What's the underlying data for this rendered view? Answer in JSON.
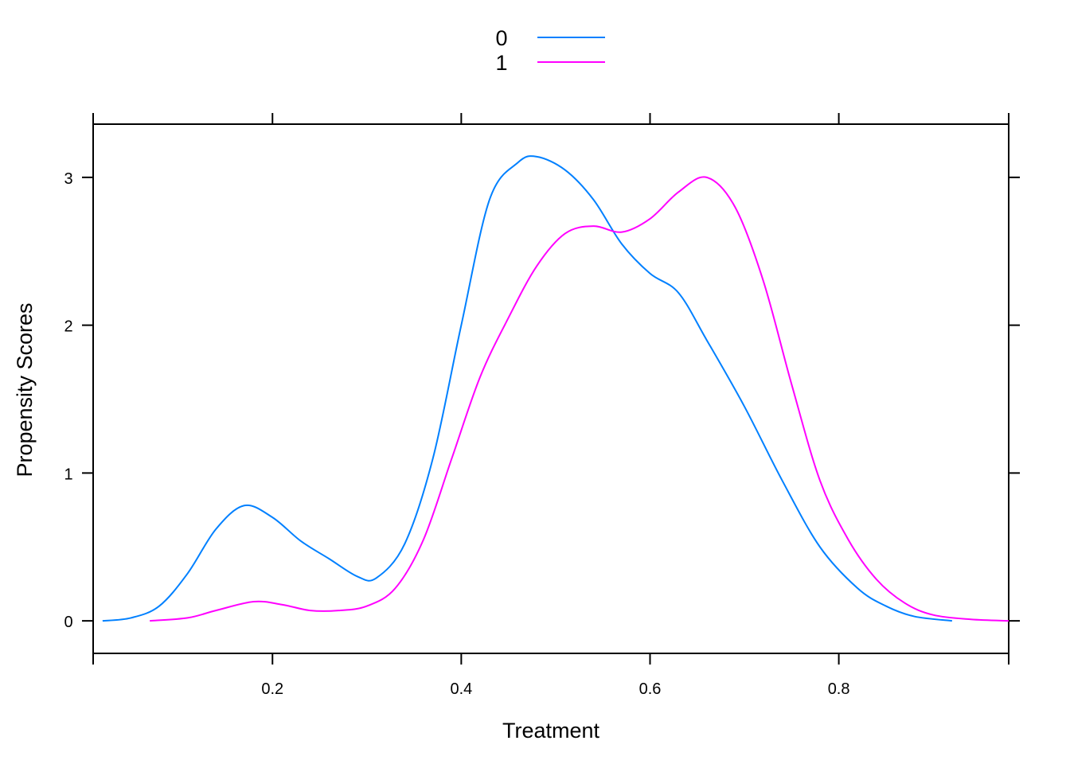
{
  "chart_data": {
    "type": "line",
    "title": "",
    "xlabel": "Treatment",
    "ylabel": "Propensity Scores",
    "xlim": [
      0.01,
      0.98
    ],
    "ylim": [
      -0.22,
      3.36
    ],
    "x_ticks": [
      0.2,
      0.4,
      0.6,
      0.8
    ],
    "x_tick_labels": [
      "0.2",
      "0.4",
      "0.6",
      "0.8"
    ],
    "y_ticks": [
      0,
      1,
      2,
      3
    ],
    "y_tick_labels": [
      "0",
      "1",
      "2",
      "3"
    ],
    "grid": false,
    "legend_position": "top",
    "series": [
      {
        "name": "0",
        "color": "#0080FF",
        "points": [
          [
            0.02,
            0.0
          ],
          [
            0.05,
            0.02
          ],
          [
            0.08,
            0.1
          ],
          [
            0.11,
            0.32
          ],
          [
            0.14,
            0.62
          ],
          [
            0.17,
            0.78
          ],
          [
            0.2,
            0.7
          ],
          [
            0.23,
            0.54
          ],
          [
            0.26,
            0.42
          ],
          [
            0.29,
            0.3
          ],
          [
            0.31,
            0.29
          ],
          [
            0.34,
            0.52
          ],
          [
            0.37,
            1.1
          ],
          [
            0.4,
            2.0
          ],
          [
            0.43,
            2.85
          ],
          [
            0.46,
            3.1
          ],
          [
            0.48,
            3.14
          ],
          [
            0.51,
            3.05
          ],
          [
            0.54,
            2.85
          ],
          [
            0.57,
            2.55
          ],
          [
            0.6,
            2.35
          ],
          [
            0.63,
            2.22
          ],
          [
            0.66,
            1.9
          ],
          [
            0.7,
            1.45
          ],
          [
            0.74,
            0.95
          ],
          [
            0.78,
            0.5
          ],
          [
            0.82,
            0.22
          ],
          [
            0.85,
            0.1
          ],
          [
            0.88,
            0.03
          ],
          [
            0.92,
            0.0
          ]
        ]
      },
      {
        "name": "1",
        "color": "#FF00FF",
        "points": [
          [
            0.07,
            0.0
          ],
          [
            0.11,
            0.02
          ],
          [
            0.14,
            0.07
          ],
          [
            0.18,
            0.13
          ],
          [
            0.21,
            0.11
          ],
          [
            0.24,
            0.07
          ],
          [
            0.27,
            0.07
          ],
          [
            0.3,
            0.1
          ],
          [
            0.33,
            0.22
          ],
          [
            0.36,
            0.55
          ],
          [
            0.39,
            1.1
          ],
          [
            0.42,
            1.65
          ],
          [
            0.45,
            2.05
          ],
          [
            0.48,
            2.4
          ],
          [
            0.51,
            2.62
          ],
          [
            0.54,
            2.67
          ],
          [
            0.57,
            2.63
          ],
          [
            0.6,
            2.72
          ],
          [
            0.63,
            2.9
          ],
          [
            0.66,
            3.0
          ],
          [
            0.69,
            2.8
          ],
          [
            0.72,
            2.3
          ],
          [
            0.75,
            1.6
          ],
          [
            0.78,
            0.95
          ],
          [
            0.81,
            0.55
          ],
          [
            0.84,
            0.28
          ],
          [
            0.87,
            0.12
          ],
          [
            0.9,
            0.04
          ],
          [
            0.94,
            0.01
          ],
          [
            0.98,
            0.0
          ]
        ]
      }
    ]
  }
}
